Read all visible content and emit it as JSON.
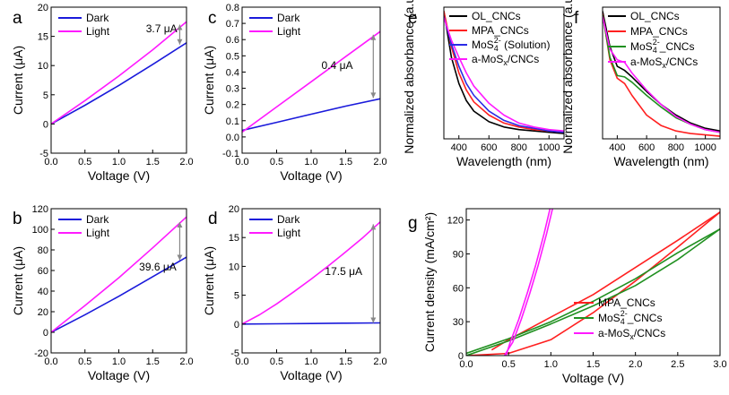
{
  "figure": {
    "panel_letters": [
      "a",
      "b",
      "c",
      "d",
      "e",
      "f",
      "g"
    ]
  },
  "colors": {
    "dark": "#1a1adb",
    "light": "#ff1aff",
    "black": "#000000",
    "red": "#ff2020",
    "green": "#209020",
    "blue": "#2a2ae6",
    "magenta": "#ff1aff",
    "annotation_arrow": "#888888"
  },
  "chart_data": [
    {
      "id": "a",
      "type": "line",
      "xlabel": "Voltage (V)",
      "ylabel": "Current (μA)",
      "xlim": [
        0,
        2.0
      ],
      "ylim": [
        -5,
        20
      ],
      "xticks": [
        0.0,
        0.5,
        1.0,
        1.5,
        2.0
      ],
      "xtick_labels": [
        "0.0",
        "0.5",
        "1.0",
        "1.5",
        "2.0"
      ],
      "yticks": [
        -5,
        0,
        5,
        10,
        15,
        20
      ],
      "ytick_labels": [
        "-5",
        "0",
        "5",
        "10",
        "15",
        "20"
      ],
      "legend": {
        "position": "top-left",
        "entries": [
          "Dark",
          "Light"
        ]
      },
      "series": [
        {
          "name": "Dark",
          "color_key": "dark",
          "x": [
            0,
            0.5,
            1.0,
            1.5,
            2.0
          ],
          "y": [
            0,
            3.2,
            6.6,
            10.2,
            13.9
          ]
        },
        {
          "name": "Light",
          "color_key": "light",
          "x": [
            0,
            0.5,
            1.0,
            1.5,
            2.0
          ],
          "y": [
            0,
            4.0,
            8.2,
            12.7,
            17.5
          ]
        }
      ],
      "annotations": [
        {
          "text": "3.7 μA",
          "arrow_x": 1.9,
          "arrow_from": 13.6,
          "arrow_to": 17.0,
          "label_x": 1.4,
          "label_y": 15.7
        }
      ]
    },
    {
      "id": "b",
      "type": "line",
      "xlabel": "Voltage (V)",
      "ylabel": "Current (μA)",
      "xlim": [
        0,
        2.0
      ],
      "ylim": [
        -20,
        120
      ],
      "xticks": [
        0.0,
        0.5,
        1.0,
        1.5,
        2.0
      ],
      "xtick_labels": [
        "0.0",
        "0.5",
        "1.0",
        "1.5",
        "2.0"
      ],
      "yticks": [
        -20,
        0,
        20,
        40,
        60,
        80,
        100,
        120
      ],
      "ytick_labels": [
        "-20",
        "0",
        "20",
        "40",
        "60",
        "80",
        "100",
        "120"
      ],
      "legend": {
        "position": "top-left",
        "entries": [
          "Dark",
          "Light"
        ]
      },
      "series": [
        {
          "name": "Dark",
          "color_key": "dark",
          "x": [
            0,
            0.5,
            1.0,
            1.5,
            2.0
          ],
          "y": [
            0,
            17.0,
            35.0,
            54.0,
            73.0
          ]
        },
        {
          "name": "Light",
          "color_key": "light",
          "x": [
            0,
            0.5,
            1.0,
            1.5,
            2.0
          ],
          "y": [
            0,
            26.0,
            53.0,
            82.0,
            112.0
          ]
        }
      ],
      "annotations": [
        {
          "text": "39.6 μA",
          "arrow_x": 1.9,
          "arrow_from": 70.0,
          "arrow_to": 107.0,
          "label_x": 1.3,
          "label_y": 60.0
        }
      ]
    },
    {
      "id": "c",
      "type": "line",
      "xlabel": "Voltage (V)",
      "ylabel": "Current (μA)",
      "xlim": [
        0,
        2.0
      ],
      "ylim": [
        -0.1,
        0.8
      ],
      "xticks": [
        0.0,
        0.5,
        1.0,
        1.5,
        2.0
      ],
      "xtick_labels": [
        "0.0",
        "0.5",
        "1.0",
        "1.5",
        "2.0"
      ],
      "yticks": [
        -0.1,
        0.0,
        0.1,
        0.2,
        0.3,
        0.4,
        0.5,
        0.6,
        0.7,
        0.8
      ],
      "ytick_labels": [
        "-0.1",
        "0.0",
        "0.1",
        "0.2",
        "0.3",
        "0.4",
        "0.5",
        "0.6",
        "0.7",
        "0.8"
      ],
      "legend": {
        "position": "top-left",
        "entries": [
          "Dark",
          "Light"
        ]
      },
      "series": [
        {
          "name": "Dark",
          "color_key": "dark",
          "x": [
            0,
            0.5,
            1.0,
            1.5,
            2.0
          ],
          "y": [
            0.04,
            0.09,
            0.14,
            0.19,
            0.235
          ]
        },
        {
          "name": "Light",
          "color_key": "light",
          "x": [
            0,
            0.5,
            1.0,
            1.5,
            2.0
          ],
          "y": [
            0.03,
            0.185,
            0.34,
            0.495,
            0.65
          ]
        }
      ],
      "annotations": [
        {
          "text": "0.4 μA",
          "arrow_x": 1.9,
          "arrow_from": 0.24,
          "arrow_to": 0.63,
          "label_x": 1.15,
          "label_y": 0.42
        }
      ]
    },
    {
      "id": "d",
      "type": "line",
      "xlabel": "Voltage (V)",
      "ylabel": "Current (μA)",
      "xlim": [
        0,
        2.0
      ],
      "ylim": [
        -5,
        20
      ],
      "xticks": [
        0.0,
        0.5,
        1.0,
        1.5,
        2.0
      ],
      "xtick_labels": [
        "0.0",
        "0.5",
        "1.0",
        "1.5",
        "2.0"
      ],
      "yticks": [
        -5,
        0,
        5,
        10,
        15,
        20
      ],
      "ytick_labels": [
        "-5",
        "0",
        "5",
        "10",
        "15",
        "20"
      ],
      "legend": {
        "position": "top-left",
        "entries": [
          "Dark",
          "Light"
        ]
      },
      "series": [
        {
          "name": "Dark",
          "color_key": "dark",
          "x": [
            0,
            0.5,
            1.0,
            1.5,
            2.0
          ],
          "y": [
            0,
            0.05,
            0.1,
            0.15,
            0.2
          ]
        },
        {
          "name": "Light",
          "color_key": "light",
          "x": [
            0,
            0.25,
            0.5,
            0.75,
            1.0,
            1.25,
            1.5,
            1.75,
            2.0
          ],
          "y": [
            0,
            1.6,
            3.5,
            5.6,
            7.8,
            10.1,
            12.5,
            15.0,
            17.7
          ]
        }
      ],
      "annotations": [
        {
          "text": "17.5 μA",
          "arrow_x": 1.9,
          "arrow_from": 0.2,
          "arrow_to": 17.3,
          "label_x": 1.2,
          "label_y": 8.5
        }
      ]
    },
    {
      "id": "e",
      "type": "line",
      "xlabel": "Wavelength (nm)",
      "ylabel": "Normalized absorbance (a.u)",
      "xlim": [
        300,
        1100
      ],
      "ylim": [
        0,
        1
      ],
      "xticks": [
        400,
        600,
        800,
        1000
      ],
      "xtick_labels": [
        "400",
        "600",
        "800",
        "1000"
      ],
      "yticks": [],
      "ytick_labels": [],
      "legend": {
        "position": "top-right",
        "entries": [
          "OL_CNCs",
          "MPA_CNCs",
          "MoS4^2- (Solution)",
          "a-MoSx/CNCs"
        ]
      },
      "series": [
        {
          "name": "OL_CNCs",
          "color_key": "black",
          "x": [
            300,
            350,
            400,
            450,
            500,
            600,
            700,
            800,
            900,
            1000,
            1100
          ],
          "y": [
            0.97,
            0.62,
            0.42,
            0.29,
            0.21,
            0.13,
            0.09,
            0.07,
            0.06,
            0.05,
            0.04
          ]
        },
        {
          "name": "MPA_CNCs",
          "color_key": "red",
          "x": [
            300,
            350,
            400,
            450,
            500,
            600,
            700,
            800,
            900,
            1000,
            1100
          ],
          "y": [
            0.97,
            0.7,
            0.5,
            0.37,
            0.28,
            0.18,
            0.12,
            0.09,
            0.07,
            0.06,
            0.05
          ]
        },
        {
          "name": "MoS4^2- (Solution)",
          "color_key": "blue",
          "x": [
            300,
            350,
            400,
            450,
            500,
            600,
            700,
            800,
            900,
            1000,
            1100
          ],
          "y": [
            0.93,
            0.72,
            0.55,
            0.42,
            0.33,
            0.21,
            0.14,
            0.1,
            0.08,
            0.06,
            0.05
          ]
        },
        {
          "name": "a-MoSx/CNCs",
          "color_key": "magenta",
          "x": [
            300,
            350,
            400,
            450,
            500,
            600,
            700,
            800,
            900,
            1000,
            1100
          ],
          "y": [
            0.92,
            0.75,
            0.62,
            0.5,
            0.4,
            0.27,
            0.18,
            0.12,
            0.09,
            0.07,
            0.06
          ]
        }
      ]
    },
    {
      "id": "f",
      "type": "line",
      "xlabel": "Wavelength (nm)",
      "ylabel": "Normalized absorbance (a.u)",
      "xlim": [
        300,
        1100
      ],
      "ylim": [
        0,
        1
      ],
      "xticks": [
        400,
        600,
        800,
        1000
      ],
      "xtick_labels": [
        "400",
        "600",
        "800",
        "1000"
      ],
      "yticks": [],
      "ytick_labels": [],
      "legend": {
        "position": "top-right",
        "entries": [
          "OL_CNCs",
          "MPA_CNCs",
          "MoS4^2-_CNCs",
          "a-MoSx/CNCs"
        ]
      },
      "series": [
        {
          "name": "OL_CNCs",
          "color_key": "black",
          "x": [
            300,
            350,
            400,
            450,
            500,
            600,
            700,
            800,
            900,
            1000,
            1100
          ],
          "y": [
            0.97,
            0.7,
            0.55,
            0.52,
            0.47,
            0.36,
            0.26,
            0.18,
            0.12,
            0.08,
            0.06
          ]
        },
        {
          "name": "MPA_CNCs",
          "color_key": "red",
          "x": [
            300,
            350,
            400,
            450,
            500,
            600,
            700,
            800,
            900,
            1000,
            1100
          ],
          "y": [
            0.95,
            0.6,
            0.46,
            0.42,
            0.33,
            0.18,
            0.1,
            0.06,
            0.04,
            0.03,
            0.02
          ]
        },
        {
          "name": "MoS4^2-_CNCs",
          "color_key": "green",
          "x": [
            300,
            350,
            400,
            450,
            500,
            600,
            700,
            800,
            900,
            1000,
            1100
          ],
          "y": [
            0.94,
            0.62,
            0.48,
            0.47,
            0.43,
            0.33,
            0.24,
            0.16,
            0.11,
            0.07,
            0.05
          ]
        },
        {
          "name": "a-MoSx/CNCs",
          "color_key": "magenta",
          "x": [
            300,
            350,
            400,
            450,
            500,
            600,
            700,
            800,
            900,
            1000,
            1100
          ],
          "y": [
            0.93,
            0.68,
            0.6,
            0.58,
            0.5,
            0.37,
            0.26,
            0.17,
            0.11,
            0.07,
            0.05
          ]
        }
      ]
    },
    {
      "id": "g",
      "type": "line",
      "xlabel": "Voltage (V)",
      "ylabel": "Current density (mA/cm²)",
      "xlim": [
        0,
        3.0
      ],
      "ylim": [
        0,
        130
      ],
      "xticks": [
        0.0,
        0.5,
        1.0,
        1.5,
        2.0,
        2.5,
        3.0
      ],
      "xtick_labels": [
        "0.0",
        "0.5",
        "1.0",
        "1.5",
        "2.0",
        "2.5",
        "3.0"
      ],
      "yticks": [
        0,
        30,
        60,
        90,
        120
      ],
      "ytick_labels": [
        "0",
        "30",
        "60",
        "90",
        "120"
      ],
      "legend": {
        "position": "bottom-right",
        "entries": [
          "MPA_CNCs",
          "MoS4^2-_CNCs",
          "a-MoSx/CNCs"
        ]
      },
      "series": [
        {
          "name": "MPA_CNCs (forward)",
          "color_key": "red",
          "x": [
            0,
            0.5,
            1.0,
            1.5,
            2.0,
            2.5,
            3.0
          ],
          "y": [
            0,
            2,
            14,
            38,
            66,
            96,
            127
          ]
        },
        {
          "name": "MPA_CNCs (reverse)",
          "color_key": "red",
          "x": [
            3.0,
            2.5,
            2.0,
            1.5,
            1.0,
            0.5,
            0.3
          ],
          "y": [
            127,
            102,
            78,
            54,
            34,
            14,
            5
          ]
        },
        {
          "name": "MoS4^2-_CNCs (forward)",
          "color_key": "green",
          "x": [
            0,
            0.5,
            1.0,
            1.5,
            2.0,
            2.5,
            3.0
          ],
          "y": [
            0,
            13,
            28,
            44,
            62,
            85,
            112
          ]
        },
        {
          "name": "MoS4^2-_CNCs (reverse)",
          "color_key": "green",
          "x": [
            3.0,
            2.5,
            2.0,
            1.5,
            1.0,
            0.5,
            0
          ],
          "y": [
            112,
            91,
            68,
            48,
            30,
            15,
            2
          ]
        },
        {
          "name": "a-MoSx/CNCs (forward)",
          "color_key": "magenta",
          "x": [
            0.45,
            0.55,
            0.65,
            0.75,
            0.85,
            0.95,
            1.02
          ],
          "y": [
            0,
            12,
            32,
            55,
            80,
            108,
            130
          ]
        },
        {
          "name": "a-MoSx/CNCs (reverse)",
          "color_key": "magenta",
          "x": [
            0.99,
            0.92,
            0.82,
            0.72,
            0.62,
            0.52,
            0.47
          ],
          "y": [
            130,
            108,
            80,
            55,
            32,
            12,
            0
          ]
        }
      ]
    }
  ]
}
